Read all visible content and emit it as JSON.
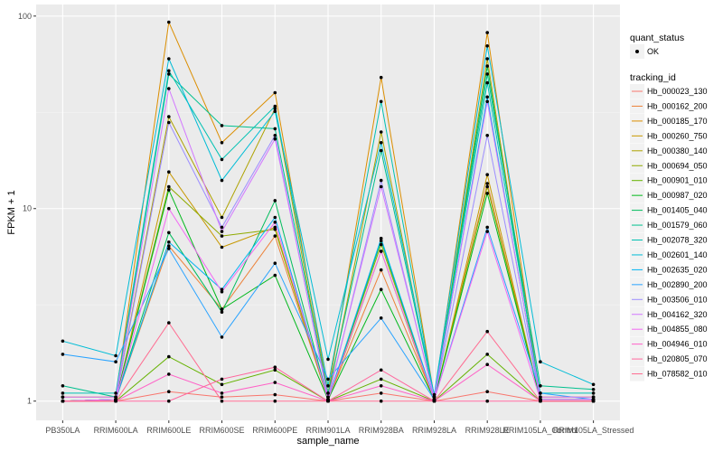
{
  "chart_data": {
    "type": "line",
    "xlabel": "sample_name",
    "ylabel": "FPKM + 1",
    "y_scale": "log10",
    "ylim": [
      1,
      100
    ],
    "y_ticks": [
      {
        "value": 1,
        "label": "1"
      },
      {
        "value": 10,
        "label": "10"
      },
      {
        "value": 100,
        "label": "100"
      }
    ],
    "categories": [
      "PB350LA",
      "RRIM600LA",
      "RRIM600LE",
      "RRIM600SE",
      "RRIM600PE",
      "RRIM901LA",
      "RRIM928BA",
      "RRIM928LA",
      "RRIM928LE",
      "RRIM105LA_Control",
      "RRIM105LA_Stressed"
    ],
    "background": "#ebebeb",
    "grid": true,
    "legend_position": "right",
    "shape_legend": {
      "title": "quant_status",
      "items": [
        "OK"
      ]
    },
    "color_legend_title": "tracking_id",
    "series": [
      {
        "name": "Hb_000023_130",
        "color": "#F8766D",
        "values": [
          1.0,
          1.0,
          1.12,
          1.05,
          1.08,
          1.0,
          1.1,
          1.0,
          1.12,
          1.0,
          1.0
        ]
      },
      {
        "name": "Hb_000162_200",
        "color": "#EC8239",
        "values": [
          1.0,
          1.02,
          6.4,
          3.0,
          7.2,
          1.02,
          4.8,
          1.02,
          13.5,
          1.02,
          1.02
        ]
      },
      {
        "name": "Hb_000185_170",
        "color": "#DB8E00",
        "values": [
          1.05,
          1.05,
          93.0,
          22.0,
          40.0,
          1.1,
          48.0,
          1.05,
          82.0,
          1.05,
          1.05
        ]
      },
      {
        "name": "Hb_000260_750",
        "color": "#C79800",
        "values": [
          1.0,
          1.0,
          15.5,
          6.3,
          8.0,
          1.0,
          6.0,
          1.0,
          15.0,
          1.0,
          1.0
        ]
      },
      {
        "name": "Hb_000380_140",
        "color": "#AEA200",
        "values": [
          1.0,
          1.02,
          30.0,
          9.0,
          33.0,
          1.05,
          25.0,
          1.02,
          60.0,
          1.02,
          1.02
        ]
      },
      {
        "name": "Hb_000694_050",
        "color": "#8FAA00",
        "values": [
          1.0,
          1.02,
          13.0,
          7.2,
          7.8,
          1.02,
          6.5,
          1.02,
          13.0,
          1.02,
          1.02
        ]
      },
      {
        "name": "Hb_000901_010",
        "color": "#64B200",
        "values": [
          1.0,
          1.0,
          1.7,
          1.22,
          1.45,
          1.0,
          1.3,
          1.0,
          1.75,
          1.0,
          1.0
        ]
      },
      {
        "name": "Hb_000987_020",
        "color": "#00B81B",
        "values": [
          1.0,
          1.02,
          12.5,
          3.0,
          4.5,
          1.02,
          3.8,
          1.02,
          12.0,
          1.02,
          1.02
        ]
      },
      {
        "name": "Hb_001405_040",
        "color": "#00BD5C",
        "values": [
          1.0,
          1.02,
          7.5,
          2.9,
          11.0,
          1.02,
          6.8,
          1.02,
          55.0,
          1.02,
          1.02
        ]
      },
      {
        "name": "Hb_001579_060",
        "color": "#00C08E",
        "values": [
          1.2,
          1.05,
          50.0,
          27.0,
          26.0,
          1.1,
          20.0,
          1.05,
          50.0,
          1.2,
          1.15
        ]
      },
      {
        "name": "Hb_002078_320",
        "color": "#00C1B2",
        "values": [
          1.1,
          1.1,
          52.0,
          18.0,
          34.0,
          1.2,
          36.0,
          1.05,
          45.0,
          1.1,
          1.1
        ]
      },
      {
        "name": "Hb_002601_140",
        "color": "#00BCD6",
        "values": [
          2.05,
          1.72,
          60.0,
          14.0,
          32.0,
          1.65,
          22.0,
          1.08,
          70.0,
          1.6,
          1.22
        ]
      },
      {
        "name": "Hb_002635_020",
        "color": "#00B3F2",
        "values": [
          1.0,
          1.02,
          6.7,
          3.8,
          9.0,
          1.02,
          7.0,
          1.02,
          38.0,
          1.02,
          1.02
        ]
      },
      {
        "name": "Hb_002890_200",
        "color": "#29A3FF",
        "values": [
          1.75,
          1.6,
          6.2,
          2.15,
          5.2,
          1.3,
          2.7,
          1.02,
          8.0,
          1.1,
          1.02
        ]
      },
      {
        "name": "Hb_003506_010",
        "color": "#9C8DFF",
        "values": [
          1.0,
          1.02,
          28.0,
          8.0,
          24.0,
          1.02,
          14.0,
          1.02,
          24.0,
          1.02,
          1.02
        ]
      },
      {
        "name": "Hb_004162_320",
        "color": "#D277FF",
        "values": [
          1.05,
          1.05,
          42.0,
          7.6,
          23.0,
          1.05,
          13.0,
          1.05,
          36.0,
          1.05,
          1.05
        ]
      },
      {
        "name": "Hb_004855_080",
        "color": "#F269F3",
        "values": [
          1.0,
          1.02,
          10.0,
          3.7,
          8.5,
          1.02,
          6.0,
          1.02,
          7.6,
          1.02,
          1.02
        ]
      },
      {
        "name": "Hb_004946_010",
        "color": "#FF61C7",
        "values": [
          1.0,
          1.0,
          1.38,
          1.1,
          1.25,
          1.0,
          1.2,
          1.0,
          1.55,
          1.0,
          1.0
        ]
      },
      {
        "name": "Hb_020805_070",
        "color": "#FF689E",
        "values": [
          1.0,
          1.0,
          1.0,
          1.3,
          1.5,
          1.0,
          1.45,
          1.0,
          1.0,
          1.0,
          1.0
        ]
      },
      {
        "name": "Hb_078582_010",
        "color": "#FF6C91",
        "values": [
          1.0,
          1.0,
          2.55,
          1.0,
          1.0,
          1.0,
          1.0,
          1.0,
          2.3,
          1.0,
          1.0
        ]
      }
    ]
  }
}
